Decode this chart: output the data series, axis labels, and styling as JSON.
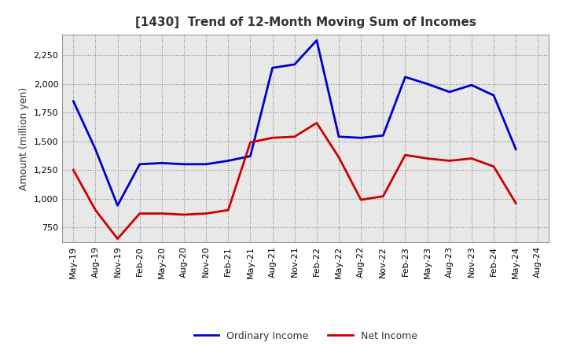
{
  "title": "[1430]  Trend of 12-Month Moving Sum of Incomes",
  "ylabel": "Amount (million yen)",
  "background_color": "#ffffff",
  "plot_bg_color": "#e8e8e8",
  "grid_color": "#aaaaaa",
  "x_labels": [
    "May-19",
    "Aug-19",
    "Nov-19",
    "Feb-20",
    "May-20",
    "Aug-20",
    "Nov-20",
    "Feb-21",
    "May-21",
    "Aug-21",
    "Nov-21",
    "Feb-22",
    "May-22",
    "Aug-22",
    "Nov-22",
    "Feb-23",
    "May-23",
    "Aug-23",
    "Nov-23",
    "Feb-24",
    "May-24",
    "Aug-24"
  ],
  "ordinary_income": [
    1850,
    1430,
    940,
    1300,
    1310,
    1300,
    1300,
    1330,
    1370,
    2140,
    2170,
    2380,
    1540,
    1530,
    1550,
    2060,
    2000,
    1930,
    1990,
    1900,
    1430,
    null
  ],
  "net_income": [
    1250,
    900,
    650,
    870,
    870,
    860,
    870,
    900,
    1490,
    1530,
    1540,
    1660,
    1360,
    990,
    1020,
    1380,
    1350,
    1330,
    1350,
    1280,
    960,
    null
  ],
  "ordinary_color": "#0000cc",
  "net_color": "#cc0000",
  "ylim": [
    620,
    2430
  ],
  "yticks": [
    750,
    1000,
    1250,
    1500,
    1750,
    2000,
    2250
  ],
  "line_width": 2.0,
  "title_fontsize": 11,
  "title_color": "#333333",
  "tick_label_fontsize": 8,
  "ylabel_fontsize": 9,
  "legend_labels": [
    "Ordinary Income",
    "Net Income"
  ],
  "legend_fontsize": 9
}
